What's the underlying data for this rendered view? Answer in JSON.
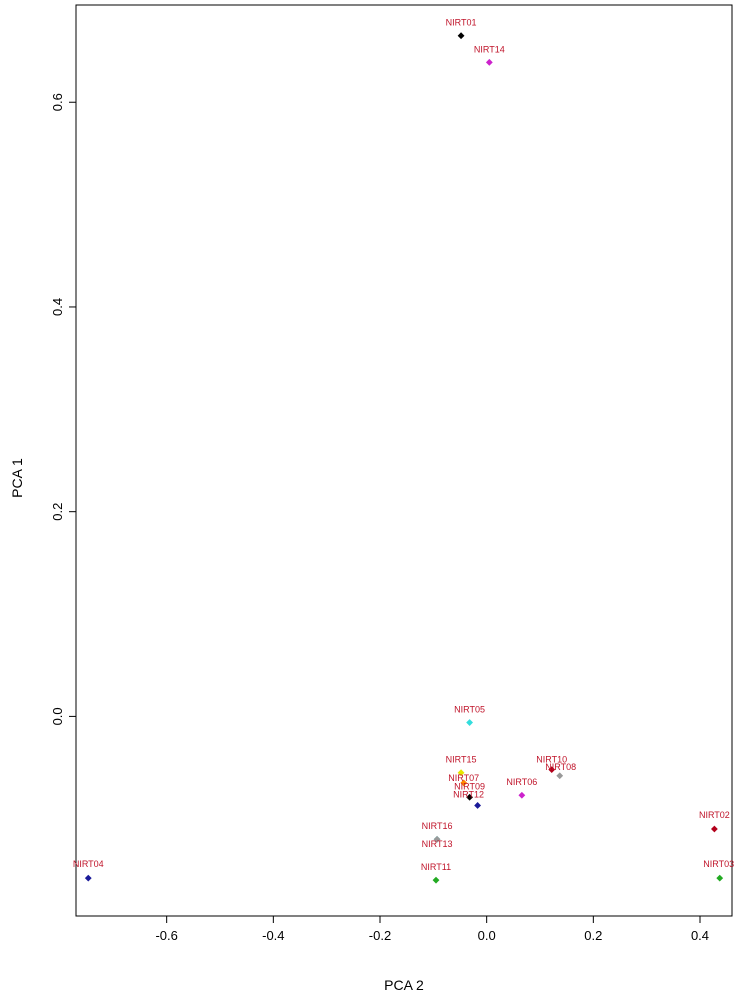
{
  "chart_data": {
    "type": "scatter",
    "title": "",
    "xlabel": "PCA 2",
    "ylabel": "PCA 1",
    "xlim": [
      -0.77,
      0.46
    ],
    "ylim": [
      -0.195,
      0.695
    ],
    "x_ticks": [
      -0.6,
      -0.4,
      -0.2,
      0.0,
      0.2,
      0.4
    ],
    "x_tick_labels": [
      "-0.6",
      "-0.4",
      "-0.2",
      "0.0",
      "0.2",
      "0.4"
    ],
    "y_ticks": [
      0.0,
      0.2,
      0.4,
      0.6
    ],
    "y_tick_labels": [
      "0.0",
      "0.2",
      "0.4",
      "0.6"
    ],
    "grid": false,
    "legend": "none",
    "label_color": "#c0142a",
    "points": [
      {
        "label": "NIRT01",
        "x": -0.048,
        "y": 0.665,
        "color": "#000000"
      },
      {
        "label": "NIRT14",
        "x": 0.005,
        "y": 0.639,
        "color": "#cc22cc"
      },
      {
        "label": "NIRT05",
        "x": -0.032,
        "y": -0.006,
        "color": "#33dddd"
      },
      {
        "label": "NIRT15",
        "x": -0.048,
        "y": -0.055,
        "color": "#e6e600"
      },
      {
        "label": "NIRT07",
        "x": -0.043,
        "y": -0.065,
        "color": "#ff8800"
      },
      {
        "label": "NIRT09",
        "x": -0.032,
        "y": -0.079,
        "color": "#000000"
      },
      {
        "label": "NIRT12",
        "x": -0.017,
        "y": -0.087,
        "color": "#1a1a99"
      },
      {
        "label": "NIRT06",
        "x": 0.066,
        "y": -0.077,
        "color": "#cc22cc"
      },
      {
        "label": "NIRT10",
        "x": 0.122,
        "y": -0.052,
        "color": "#b3001b"
      },
      {
        "label": "NIRT08",
        "x": 0.137,
        "y": -0.058,
        "color": "#999999"
      },
      {
        "label": "NIRT16",
        "x": -0.093,
        "y": -0.12,
        "color": "#33dddd"
      },
      {
        "label": "NIRT13",
        "x": -0.093,
        "y": -0.12,
        "color": "#999999"
      },
      {
        "label": "NIRT11",
        "x": -0.095,
        "y": -0.16,
        "color": "#22aa22"
      },
      {
        "label": "NIRT04",
        "x": -0.747,
        "y": -0.158,
        "color": "#1a1a99"
      },
      {
        "label": "NIRT02",
        "x": 0.427,
        "y": -0.11,
        "color": "#b3001b"
      },
      {
        "label": "NIRT03",
        "x": 0.437,
        "y": -0.158,
        "color": "#22aa22"
      }
    ]
  }
}
